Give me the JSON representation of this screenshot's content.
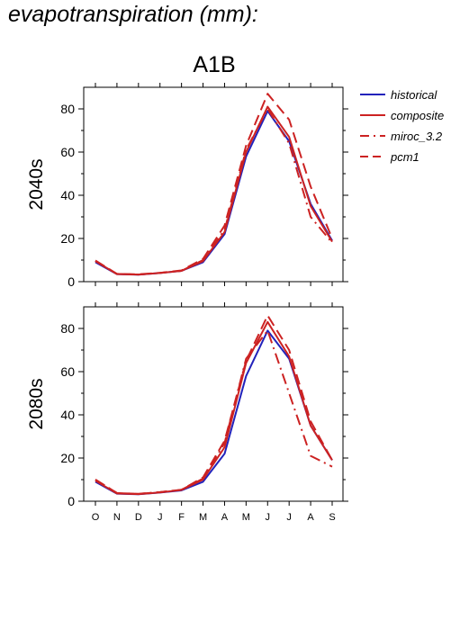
{
  "page_title": "evapotranspiration (mm):",
  "colors": {
    "historical": "#2222bb",
    "scenario": "#cc2222"
  },
  "chart_data": [
    {
      "type": "line",
      "title": "A1B",
      "ylabel": "2040s",
      "xlabel": "",
      "categories": [
        "O",
        "N",
        "D",
        "J",
        "F",
        "M",
        "A",
        "M",
        "J",
        "J",
        "A",
        "S"
      ],
      "ylim": [
        0,
        90
      ],
      "yticks": [
        0,
        20,
        40,
        60,
        80
      ],
      "grid": false,
      "legend": "right",
      "series": [
        {
          "name": "historical",
          "style": "solid",
          "color": "#2222bb",
          "values": [
            9,
            3.5,
            3.2,
            4,
            5,
            9,
            22,
            58,
            79,
            65,
            36,
            19
          ]
        },
        {
          "name": "composite",
          "style": "solid",
          "color": "#cc2222",
          "values": [
            9.5,
            3.5,
            3.3,
            4,
            5,
            9.5,
            23,
            60,
            81,
            67,
            35,
            18.5
          ]
        },
        {
          "name": "miroc_3.2",
          "style": "dashdot",
          "color": "#cc2222",
          "values": [
            9.5,
            3.6,
            3.3,
            4.1,
            5,
            10,
            24,
            61,
            80,
            64,
            30,
            18
          ]
        },
        {
          "name": "pcm1",
          "style": "dash",
          "color": "#cc2222",
          "values": [
            9.8,
            3.6,
            3.4,
            4.1,
            5.2,
            10.5,
            26,
            63,
            87,
            75,
            44,
            20
          ]
        }
      ]
    },
    {
      "type": "line",
      "title": "",
      "ylabel": "2080s",
      "xlabel": "",
      "categories": [
        "O",
        "N",
        "D",
        "J",
        "F",
        "M",
        "A",
        "M",
        "J",
        "J",
        "A",
        "S"
      ],
      "ylim": [
        0,
        90
      ],
      "yticks": [
        0,
        20,
        40,
        60,
        80
      ],
      "grid": false,
      "legend": "none",
      "series": [
        {
          "name": "historical",
          "style": "solid",
          "color": "#2222bb",
          "values": [
            9,
            3.5,
            3.2,
            4,
            5,
            9,
            22,
            58,
            79,
            66,
            35,
            19
          ]
        },
        {
          "name": "composite",
          "style": "solid",
          "color": "#cc2222",
          "values": [
            9.5,
            3.6,
            3.3,
            4.1,
            5.2,
            10,
            25,
            64,
            83,
            67,
            35,
            19
          ]
        },
        {
          "name": "miroc_3.2",
          "style": "dashdot",
          "color": "#cc2222",
          "values": [
            10,
            3.8,
            3.4,
            4.2,
            5.3,
            10.5,
            27,
            66,
            79,
            50,
            21,
            16
          ]
        },
        {
          "name": "pcm1",
          "style": "dash",
          "color": "#cc2222",
          "values": [
            10,
            3.8,
            3.4,
            4.2,
            5.3,
            11,
            28,
            65,
            86,
            70,
            37,
            19
          ]
        }
      ]
    }
  ]
}
